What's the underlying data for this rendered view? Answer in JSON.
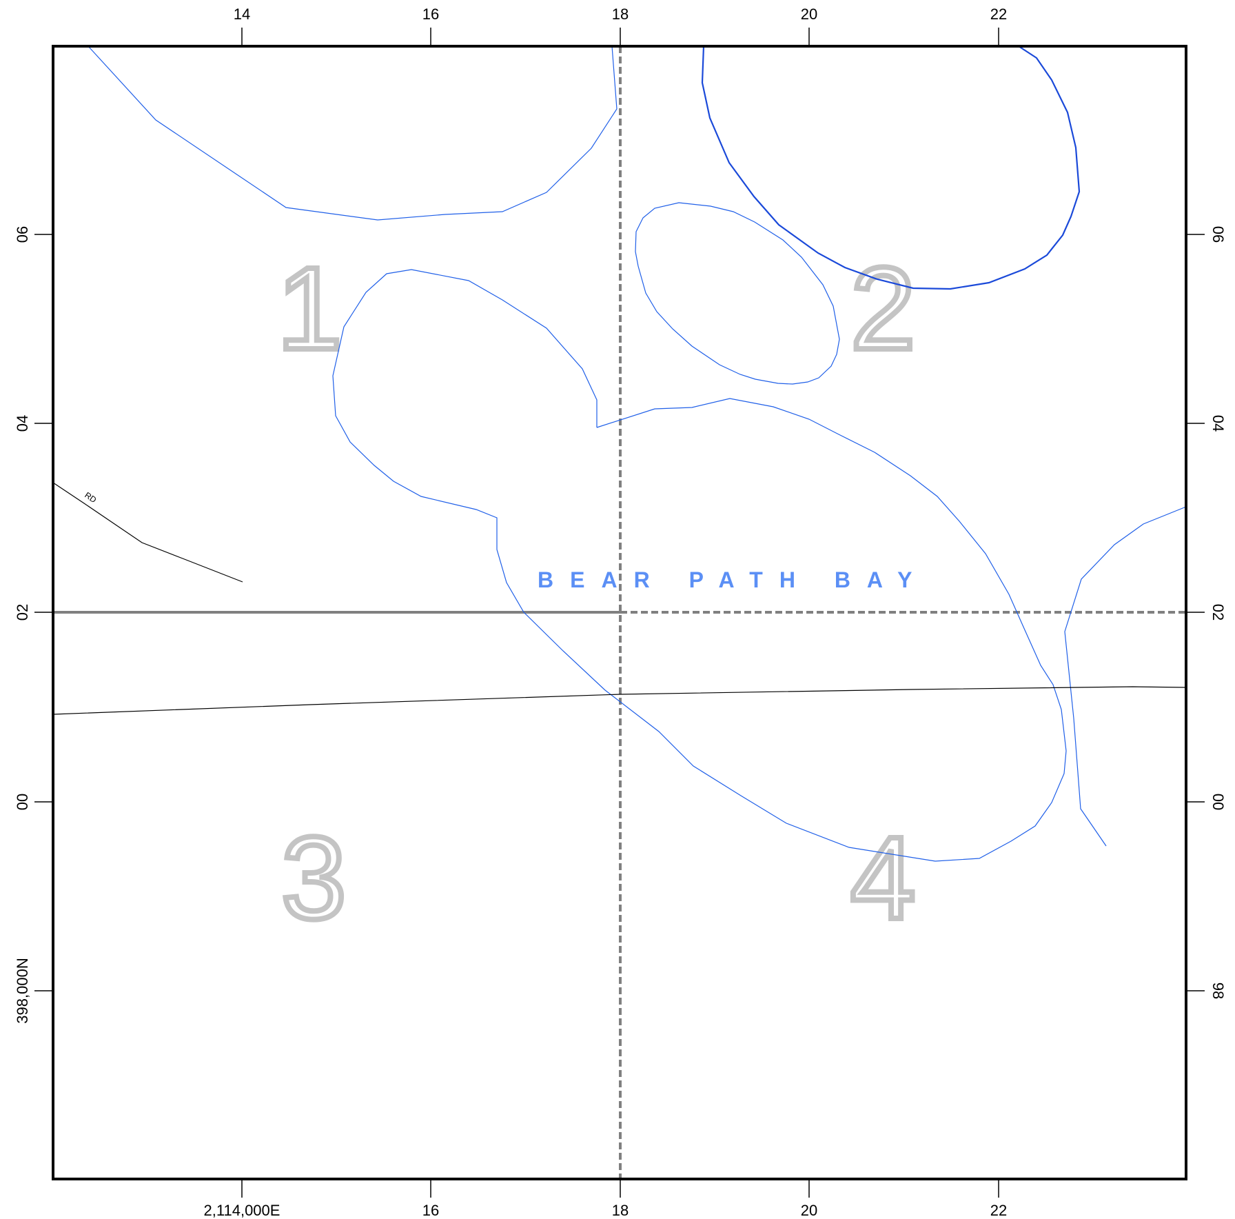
{
  "map": {
    "top_ticks": [
      "14",
      "16",
      "18",
      "20",
      "22"
    ],
    "bottom_ticks": [
      "2,114,000E",
      "16",
      "18",
      "20",
      "22"
    ],
    "left_ticks": [
      "06",
      "04",
      "02",
      "00",
      "398,000N"
    ],
    "right_ticks": [
      "06",
      "04",
      "02",
      "00",
      "98"
    ],
    "quadrant_labels": [
      "1",
      "2",
      "3",
      "4"
    ],
    "water_label": "BEAR PATH BAY",
    "road_label": "RD",
    "colors": {
      "water": "#1f5fe8",
      "water_label": "#5b8ff5",
      "grid": "#808080",
      "quadrant_label_outline": "#c4c4c4"
    }
  }
}
